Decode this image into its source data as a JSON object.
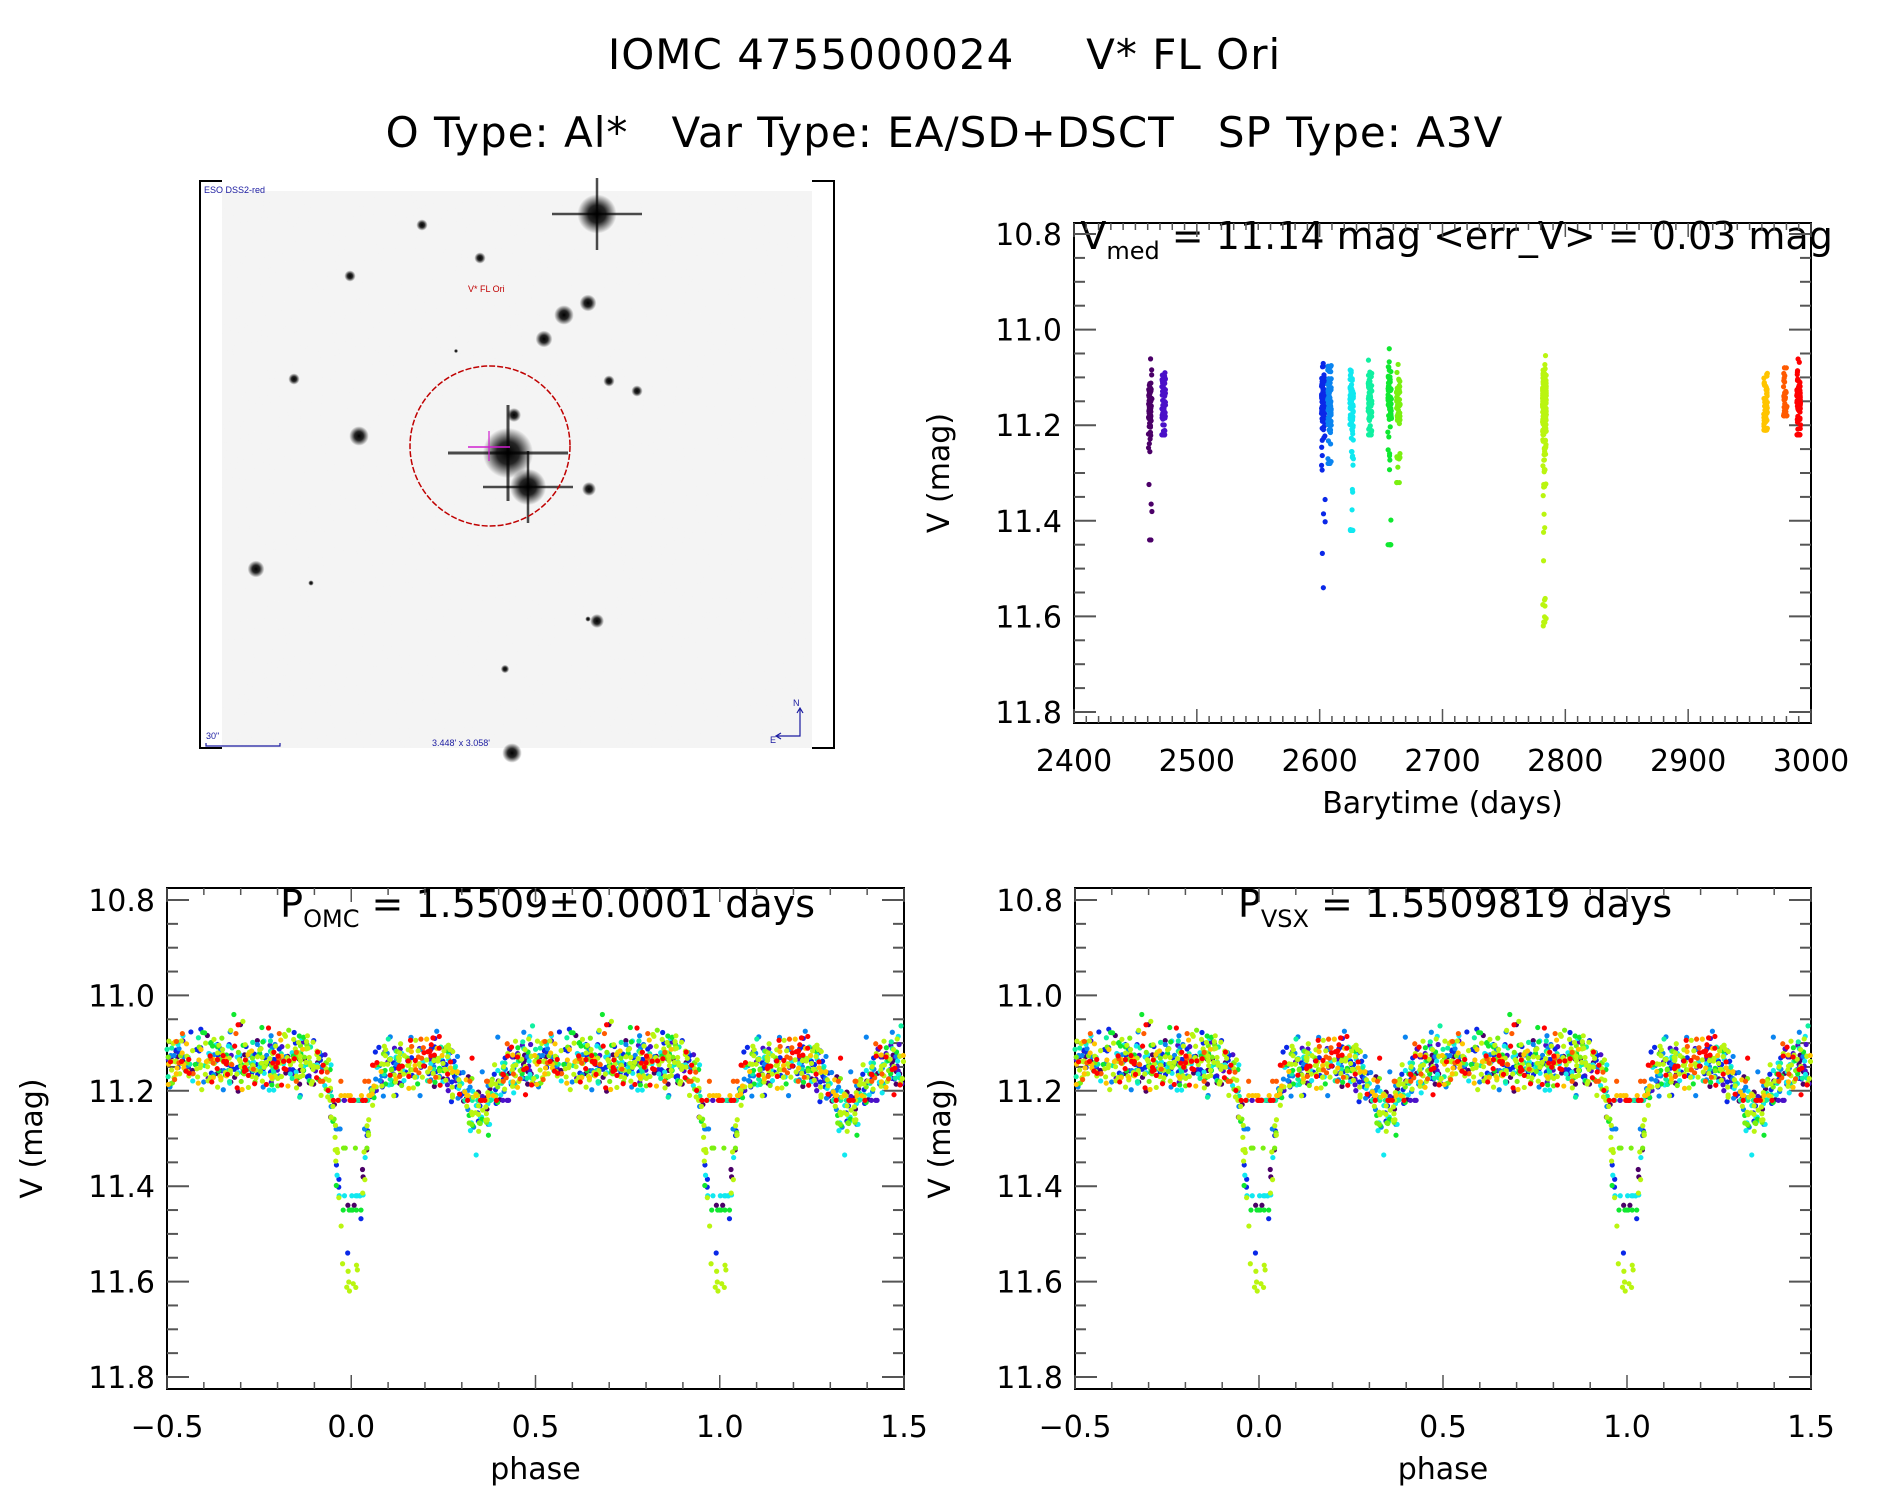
{
  "header": {
    "title_id": "IOMC 4755000024",
    "title_name": "V* FL Ori",
    "otype_label": "O Type: Al*",
    "vartype_label": "Var Type: EA/SD+DSCT",
    "sptype_label": "SP Type: A3V"
  },
  "image_panel": {
    "survey_label": "ESO DSS2-red",
    "target_label": "V* FL Ori",
    "scale_label": "30\"",
    "fov_label": "3.448' x 3.058'",
    "north_label": "N",
    "east_label": "E",
    "circle_color": "#c00000",
    "annotation_color": "#1a1aa0"
  },
  "colors": {
    "seasons": [
      "#4b0068",
      "#4a10c8",
      "#0a28e8",
      "#0a84f0",
      "#10e8f0",
      "#10f0a0",
      "#10e830",
      "#7af010",
      "#baf510",
      "#ffc400",
      "#ff5a00",
      "#ff0000"
    ]
  },
  "chart_data": [
    {
      "id": "lightcurve",
      "type": "scatter",
      "title_main": "V",
      "title_sub": "med",
      "title_rest": " = 11.14 mag <err_V> = 0.03 mag",
      "xlabel": "Barytime (days)",
      "ylabel": "V (mag)",
      "xlim": [
        2400,
        3000
      ],
      "ylim": [
        10.8,
        11.8
      ],
      "y_inverted": true,
      "xticks": [
        "2400",
        "2500",
        "2600",
        "2700",
        "2800",
        "2900",
        "3000"
      ],
      "xtick_values": [
        2400,
        2500,
        2600,
        2700,
        2800,
        2900,
        3000
      ],
      "yticks": [
        "10.8",
        "11.0",
        "11.2",
        "11.4",
        "11.6",
        "11.8"
      ],
      "ytick_values": [
        10.8,
        11.0,
        11.2,
        11.4,
        11.6,
        11.8
      ],
      "series": [
        {
          "name": "season-1",
          "color_index": 0,
          "t_center": 2462,
          "n": 70,
          "v_min": 10.94,
          "v_max": 11.44
        },
        {
          "name": "season-2",
          "color_index": 1,
          "t_center": 2473,
          "n": 70,
          "v_min": 11.02,
          "v_max": 11.22
        },
        {
          "name": "season-3",
          "color_index": 2,
          "t_center": 2603,
          "n": 90,
          "v_min": 11.07,
          "v_max": 11.54
        },
        {
          "name": "season-4",
          "color_index": 3,
          "t_center": 2608,
          "n": 80,
          "v_min": 11.05,
          "v_max": 11.28
        },
        {
          "name": "season-5",
          "color_index": 4,
          "t_center": 2626,
          "n": 90,
          "v_min": 11.0,
          "v_max": 11.42
        },
        {
          "name": "season-6",
          "color_index": 5,
          "t_center": 2641,
          "n": 80,
          "v_min": 11.01,
          "v_max": 11.22
        },
        {
          "name": "season-7",
          "color_index": 6,
          "t_center": 2657,
          "n": 70,
          "v_min": 11.04,
          "v_max": 11.45
        },
        {
          "name": "season-8",
          "color_index": 7,
          "t_center": 2664,
          "n": 50,
          "v_min": 11.04,
          "v_max": 11.32
        },
        {
          "name": "season-9",
          "color_index": 8,
          "t_center": 2783,
          "n": 260,
          "v_min": 10.98,
          "v_max": 11.64
        },
        {
          "name": "season-10",
          "color_index": 9,
          "t_center": 2963,
          "n": 60,
          "v_min": 11.02,
          "v_max": 11.21
        },
        {
          "name": "season-11",
          "color_index": 10,
          "t_center": 2979,
          "n": 40,
          "v_min": 11.08,
          "v_max": 11.18
        },
        {
          "name": "season-12",
          "color_index": 11,
          "t_center": 2990,
          "n": 90,
          "v_min": 10.94,
          "v_max": 11.22
        }
      ]
    },
    {
      "id": "phase-omc",
      "type": "scatter",
      "title_main": "P",
      "title_sub": "OMC",
      "title_rest": " = 1.5509±0.0001 days",
      "period_days": 1.5509,
      "xlabel": "phase",
      "ylabel": "V (mag)",
      "xlim": [
        -0.5,
        1.5
      ],
      "ylim": [
        10.8,
        11.8
      ],
      "y_inverted": true,
      "xticks": [
        "−0.5",
        "0.0",
        "0.5",
        "1.0",
        "1.5"
      ],
      "xtick_values": [
        -0.5,
        0.0,
        0.5,
        1.0,
        1.5
      ],
      "yticks": [
        "10.8",
        "11.0",
        "11.2",
        "11.4",
        "11.6",
        "11.8"
      ],
      "ytick_values": [
        10.8,
        11.0,
        11.2,
        11.4,
        11.6,
        11.8
      ],
      "model": {
        "baseline": 11.14,
        "primary_phase": 0.0,
        "primary_depth": 0.5,
        "primary_width": 0.05,
        "secondary_phase": 0.35,
        "secondary_depth": 0.1,
        "secondary_width": 0.04,
        "scatter": 0.05
      }
    },
    {
      "id": "phase-vsx",
      "type": "scatter",
      "title_main": "P",
      "title_sub": "VSX",
      "title_rest": " = 1.5509819 days",
      "period_days": 1.5509819,
      "xlabel": "phase",
      "ylabel": "V (mag)",
      "xlim": [
        -0.5,
        1.5
      ],
      "ylim": [
        10.8,
        11.8
      ],
      "y_inverted": true,
      "xticks": [
        "−0.5",
        "0.0",
        "0.5",
        "1.0",
        "1.5"
      ],
      "xtick_values": [
        -0.5,
        0.0,
        0.5,
        1.0,
        1.5
      ],
      "yticks": [
        "10.8",
        "11.0",
        "11.2",
        "11.4",
        "11.6",
        "11.8"
      ],
      "ytick_values": [
        10.8,
        11.0,
        11.2,
        11.4,
        11.6,
        11.8
      ],
      "model": {
        "baseline": 11.14,
        "primary_phase": 0.0,
        "primary_depth": 0.5,
        "primary_width": 0.05,
        "secondary_phase": 0.35,
        "secondary_depth": 0.1,
        "secondary_width": 0.04,
        "scatter": 0.05
      }
    }
  ]
}
